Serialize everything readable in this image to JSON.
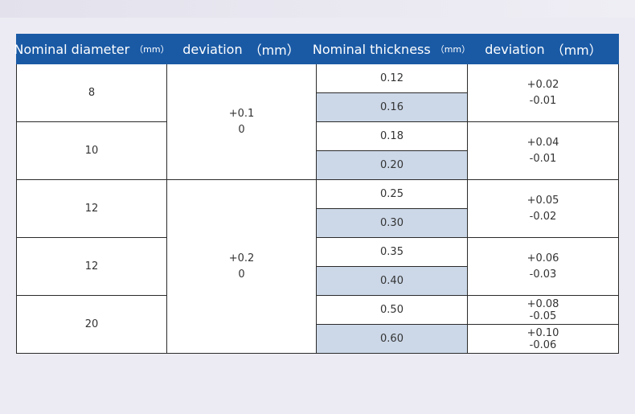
{
  "header": {
    "col1": "Nominal diameter",
    "col1_unit": "（mm）",
    "col2": "deviation",
    "col2_unit": "（mm）",
    "col3": "Nominal thickness",
    "col3_unit": "（mm）",
    "col4": "deviation",
    "col4_unit": "（mm）"
  },
  "diameters": [
    "8",
    "10",
    "12",
    "12",
    "20"
  ],
  "diameter_deviation": [
    {
      "upper": "+0.1",
      "lower": "0"
    },
    {
      "upper": "+0.2",
      "lower": "0"
    }
  ],
  "thickness": [
    "0.12",
    "0.16",
    "0.18",
    "0.20",
    "0.25",
    "0.30",
    "0.35",
    "0.40",
    "0.50",
    "0.60"
  ],
  "thickness_deviation": [
    {
      "upper": "+0.02",
      "lower": "-0.01"
    },
    {
      "upper": "+0.04",
      "lower": "-0.01"
    },
    {
      "upper": "+0.05",
      "lower": "-0.02"
    },
    {
      "upper": "+0.06",
      "lower": "-0.03"
    },
    {
      "upper": "+0.08",
      "lower": "-0.05"
    },
    {
      "upper": "+0.10",
      "lower": "-0.06"
    }
  ]
}
